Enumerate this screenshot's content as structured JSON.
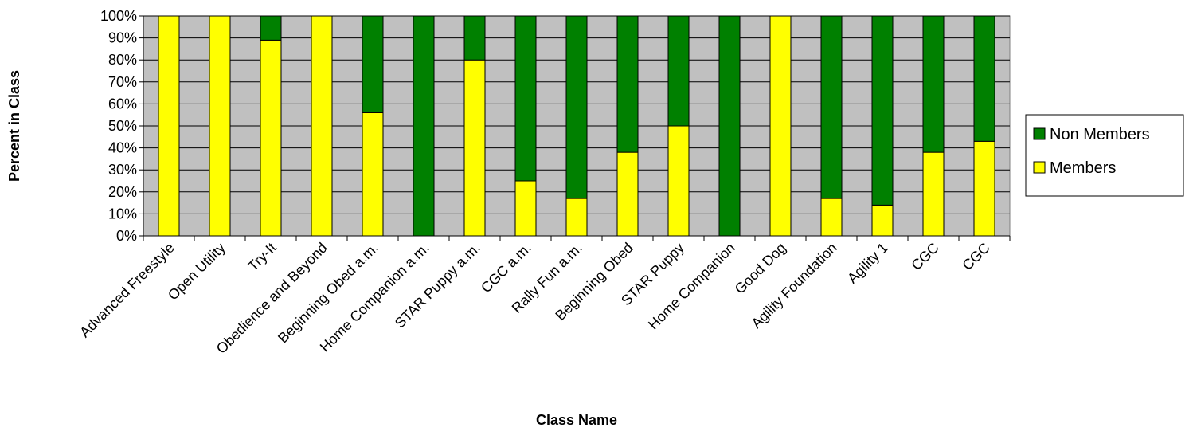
{
  "chart_data": {
    "type": "bar",
    "stacked": true,
    "percent_stacked": true,
    "title": "",
    "xlabel": "Class Name",
    "ylabel": "Percent in Class",
    "ylim": [
      0,
      100
    ],
    "y_ticks": [
      "0%",
      "10%",
      "20%",
      "30%",
      "40%",
      "50%",
      "60%",
      "70%",
      "80%",
      "90%",
      "100%"
    ],
    "grid": true,
    "legend_position": "right",
    "categories": [
      "Advanced Freestyle",
      "Open Utility",
      "Try-It",
      "Obedience and Beyond",
      "Beginning Obed a.m.",
      "Home Companion a.m.",
      "STAR Puppy  a.m.",
      "CGC  a.m.",
      "Rally Fun  a.m.",
      "Beginning Obed",
      "STAR Puppy",
      "Home Companion",
      "Good Dog",
      "Agility Foundation",
      "Agility 1",
      "CGC",
      "CGC"
    ],
    "series": [
      {
        "name": "Members",
        "color": "#ffff00",
        "values": [
          100,
          100,
          89,
          100,
          56,
          0,
          80,
          25,
          17,
          38,
          50,
          0,
          100,
          17,
          14,
          38,
          43
        ]
      },
      {
        "name": "Non Members",
        "color": "#008000",
        "values": [
          0,
          0,
          11,
          0,
          44,
          100,
          20,
          75,
          83,
          62,
          50,
          100,
          0,
          83,
          86,
          62,
          57
        ]
      }
    ],
    "legend_order": [
      "Non Members",
      "Members"
    ],
    "plot_background": "#c0c0c0"
  }
}
